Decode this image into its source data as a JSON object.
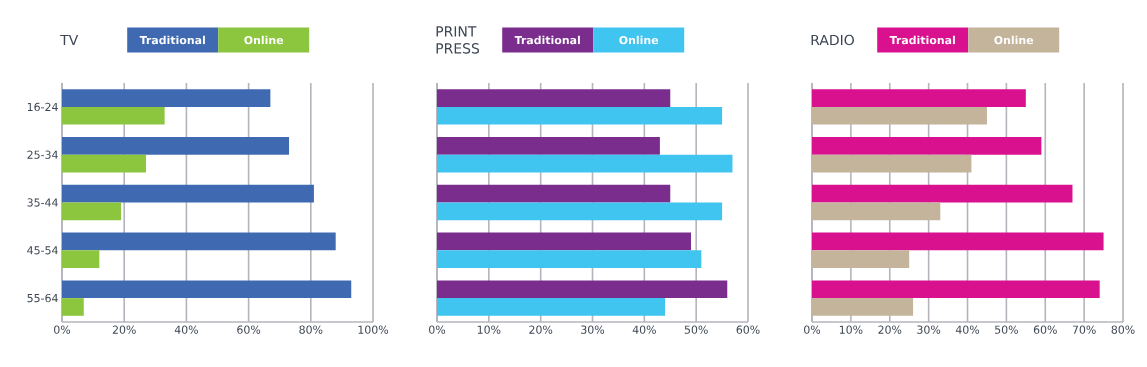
{
  "chart_data": [
    {
      "type": "bar",
      "orientation": "horizontal",
      "title": "TV",
      "categories": [
        "16-24",
        "25-34",
        "35-44",
        "45-54",
        "55-64"
      ],
      "series": [
        {
          "name": "Traditional",
          "color": "#3f6ab2",
          "values": [
            67,
            73,
            81,
            88,
            93
          ]
        },
        {
          "name": "Online",
          "color": "#8cc63f",
          "values": [
            33,
            27,
            19,
            12,
            7
          ]
        }
      ],
      "xlim": [
        0,
        100
      ],
      "xticks": [
        {
          "value": 0,
          "label": "0%"
        },
        {
          "value": 20,
          "label": "20%"
        },
        {
          "value": 40,
          "label": "40%"
        },
        {
          "value": 60,
          "label": "60%"
        },
        {
          "value": 80,
          "label": "80%"
        },
        {
          "value": 100,
          "label": "100%"
        }
      ],
      "grid": "x",
      "legend": "top"
    },
    {
      "type": "bar",
      "orientation": "horizontal",
      "title": "PRINT PRESS",
      "categories": [
        null,
        null,
        null,
        null,
        null
      ],
      "series": [
        {
          "name": "Traditional",
          "color": "#7b2d8e",
          "values": [
            45,
            43,
            45,
            49,
            56
          ]
        },
        {
          "name": "Online",
          "color": "#40c4f0",
          "values": [
            55,
            57,
            55,
            51,
            44
          ]
        }
      ],
      "xlim": [
        0,
        60
      ],
      "xticks": [
        {
          "value": 0,
          "label": "0%"
        },
        {
          "value": 10,
          "label": "10%"
        },
        {
          "value": 20,
          "label": "20%"
        },
        {
          "value": 30,
          "label": "30%"
        },
        {
          "value": 40,
          "label": "40%"
        },
        {
          "value": 50,
          "label": "50%"
        },
        {
          "value": 60,
          "label": "60%"
        }
      ],
      "grid": "x",
      "legend": "top",
      "tick_labels": "x"
    },
    {
      "type": "bar",
      "orientation": "horizontal",
      "title": "RADIO",
      "categories": [
        null,
        null,
        null,
        null,
        null
      ],
      "series": [
        {
          "name": "Traditional",
          "color": "#d9118f",
          "values": [
            55,
            59,
            67,
            75,
            74
          ]
        },
        {
          "name": "Online",
          "color": "#c4b49c",
          "values": [
            45,
            41,
            33,
            25,
            26
          ]
        }
      ],
      "xlim": [
        0,
        80
      ],
      "xticks": [
        {
          "value": 0,
          "label": "0%"
        },
        {
          "value": 10,
          "label": "10%"
        },
        {
          "value": 20,
          "label": "20%"
        },
        {
          "value": 30,
          "label": "30%"
        },
        {
          "value": 40,
          "label": "40%"
        },
        {
          "value": 50,
          "label": "50%"
        },
        {
          "value": 60,
          "label": "60%"
        },
        {
          "value": 70,
          "label": "70%"
        },
        {
          "value": 80,
          "label": "80%"
        }
      ],
      "grid": "x",
      "legend": "top",
      "tick_labels": "x"
    }
  ]
}
